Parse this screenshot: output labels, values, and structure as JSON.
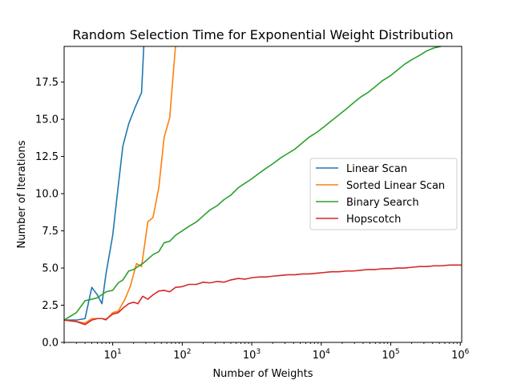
{
  "chart_data": {
    "type": "line",
    "title": "Random Selection Time for Exponential Weight Distribution",
    "xlabel": "Number of Weights",
    "ylabel": "Number of Iterations",
    "xscale": "log",
    "xlim": [
      2,
      1048576
    ],
    "ylim": [
      0,
      19.9
    ],
    "grid": false,
    "legend_position": "center-right",
    "x_ticks": [
      {
        "value": 10,
        "label": "10",
        "exp": "1"
      },
      {
        "value": 100,
        "label": "10",
        "exp": "2"
      },
      {
        "value": 1000,
        "label": "10",
        "exp": "3"
      },
      {
        "value": 10000,
        "label": "10",
        "exp": "4"
      },
      {
        "value": 100000,
        "label": "10",
        "exp": "5"
      },
      {
        "value": 1000000,
        "label": "10",
        "exp": "6"
      }
    ],
    "y_ticks": [
      {
        "value": 0.0,
        "label": "0.0"
      },
      {
        "value": 2.5,
        "label": "2.5"
      },
      {
        "value": 5.0,
        "label": "5.0"
      },
      {
        "value": 7.5,
        "label": "7.5"
      },
      {
        "value": 10.0,
        "label": "10.0"
      },
      {
        "value": 12.5,
        "label": "12.5"
      },
      {
        "value": 15.0,
        "label": "15.0"
      },
      {
        "value": 17.5,
        "label": "17.5"
      }
    ],
    "series": [
      {
        "name": "Linear Scan",
        "color": "#1f77b4",
        "points": [
          [
            2,
            1.5
          ],
          [
            3,
            1.5
          ],
          [
            4,
            1.6
          ],
          [
            5,
            3.7
          ],
          [
            6,
            3.2
          ],
          [
            7,
            2.6
          ],
          [
            8,
            4.6
          ],
          [
            10,
            7.2
          ],
          [
            12,
            10.5
          ],
          [
            14,
            13.2
          ],
          [
            17,
            14.7
          ],
          [
            21,
            15.8
          ],
          [
            26,
            16.8
          ],
          [
            28,
            19.9
          ]
        ]
      },
      {
        "name": "Sorted Linear Scan",
        "color": "#ff7f0e",
        "points": [
          [
            2,
            1.5
          ],
          [
            3,
            1.4
          ],
          [
            4,
            1.3
          ],
          [
            5,
            1.6
          ],
          [
            6,
            1.6
          ],
          [
            7,
            1.6
          ],
          [
            8,
            1.5
          ],
          [
            10,
            2.0
          ],
          [
            12,
            2.1
          ],
          [
            15,
            2.9
          ],
          [
            18,
            3.8
          ],
          [
            22,
            5.3
          ],
          [
            26,
            5.1
          ],
          [
            32,
            8.1
          ],
          [
            38,
            8.4
          ],
          [
            46,
            10.4
          ],
          [
            55,
            13.8
          ],
          [
            66,
            15.1
          ],
          [
            80,
            19.9
          ]
        ]
      },
      {
        "name": "Binary Search",
        "color": "#2ca02c",
        "points": [
          [
            2,
            1.5
          ],
          [
            3,
            2.0
          ],
          [
            4,
            2.8
          ],
          [
            5,
            2.9
          ],
          [
            6,
            3.0
          ],
          [
            8,
            3.4
          ],
          [
            10,
            3.5
          ],
          [
            12,
            4.0
          ],
          [
            14,
            4.2
          ],
          [
            17,
            4.8
          ],
          [
            20,
            4.9
          ],
          [
            23,
            5.1
          ],
          [
            27,
            5.3
          ],
          [
            32,
            5.6
          ],
          [
            38,
            5.9
          ],
          [
            46,
            6.1
          ],
          [
            55,
            6.7
          ],
          [
            66,
            6.8
          ],
          [
            80,
            7.2
          ],
          [
            100,
            7.5
          ],
          [
            125,
            7.8
          ],
          [
            160,
            8.1
          ],
          [
            200,
            8.5
          ],
          [
            250,
            8.9
          ],
          [
            320,
            9.2
          ],
          [
            400,
            9.6
          ],
          [
            500,
            9.9
          ],
          [
            640,
            10.4
          ],
          [
            800,
            10.7
          ],
          [
            1000,
            11.0
          ],
          [
            1300,
            11.4
          ],
          [
            1600,
            11.7
          ],
          [
            2000,
            12.0
          ],
          [
            2600,
            12.4
          ],
          [
            3300,
            12.7
          ],
          [
            4200,
            13.0
          ],
          [
            5300,
            13.4
          ],
          [
            6700,
            13.8
          ],
          [
            8500,
            14.1
          ],
          [
            11000,
            14.5
          ],
          [
            14000,
            14.9
          ],
          [
            18000,
            15.3
          ],
          [
            23000,
            15.7
          ],
          [
            29000,
            16.1
          ],
          [
            37000,
            16.5
          ],
          [
            47000,
            16.8
          ],
          [
            60000,
            17.2
          ],
          [
            76000,
            17.6
          ],
          [
            97000,
            17.9
          ],
          [
            124000,
            18.3
          ],
          [
            158000,
            18.7
          ],
          [
            200000,
            19.0
          ],
          [
            260000,
            19.3
          ],
          [
            330000,
            19.6
          ],
          [
            420000,
            19.8
          ],
          [
            530000,
            19.9
          ]
        ]
      },
      {
        "name": "Hopscotch",
        "color": "#d62728",
        "points": [
          [
            2,
            1.5
          ],
          [
            3,
            1.4
          ],
          [
            4,
            1.2
          ],
          [
            5,
            1.5
          ],
          [
            6,
            1.6
          ],
          [
            7,
            1.6
          ],
          [
            8,
            1.55
          ],
          [
            10,
            1.9
          ],
          [
            12,
            2.0
          ],
          [
            14,
            2.3
          ],
          [
            17,
            2.6
          ],
          [
            20,
            2.7
          ],
          [
            23,
            2.6
          ],
          [
            27,
            3.1
          ],
          [
            32,
            2.9
          ],
          [
            38,
            3.2
          ],
          [
            46,
            3.45
          ],
          [
            55,
            3.5
          ],
          [
            66,
            3.4
          ],
          [
            80,
            3.7
          ],
          [
            100,
            3.75
          ],
          [
            125,
            3.9
          ],
          [
            160,
            3.9
          ],
          [
            200,
            4.05
          ],
          [
            250,
            4.0
          ],
          [
            320,
            4.1
          ],
          [
            400,
            4.05
          ],
          [
            500,
            4.2
          ],
          [
            640,
            4.3
          ],
          [
            800,
            4.25
          ],
          [
            1000,
            4.35
          ],
          [
            1300,
            4.4
          ],
          [
            1600,
            4.4
          ],
          [
            2000,
            4.45
          ],
          [
            2600,
            4.5
          ],
          [
            3300,
            4.55
          ],
          [
            4200,
            4.55
          ],
          [
            5300,
            4.6
          ],
          [
            6700,
            4.6
          ],
          [
            8500,
            4.65
          ],
          [
            11000,
            4.7
          ],
          [
            14000,
            4.75
          ],
          [
            18000,
            4.75
          ],
          [
            23000,
            4.8
          ],
          [
            29000,
            4.8
          ],
          [
            37000,
            4.85
          ],
          [
            47000,
            4.9
          ],
          [
            60000,
            4.9
          ],
          [
            76000,
            4.95
          ],
          [
            97000,
            4.95
          ],
          [
            124000,
            5.0
          ],
          [
            158000,
            5.0
          ],
          [
            200000,
            5.05
          ],
          [
            260000,
            5.1
          ],
          [
            330000,
            5.1
          ],
          [
            420000,
            5.15
          ],
          [
            530000,
            5.15
          ],
          [
            700000,
            5.2
          ],
          [
            1048576,
            5.2
          ]
        ]
      }
    ]
  }
}
